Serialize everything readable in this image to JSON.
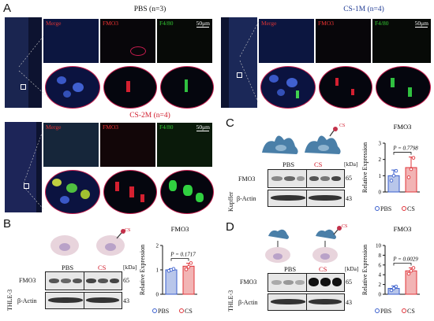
{
  "figure": {
    "panels": {
      "A": {
        "letter": "A",
        "groups": [
          {
            "title": "PBS (n=3)",
            "color": "#111111"
          },
          {
            "title": "CS-1M (n=4)",
            "color": "#1f3a93"
          },
          {
            "title": "CS-2M (n=4)",
            "color": "#d11a2a"
          }
        ],
        "channel_labels": {
          "merge": "Merge",
          "fmo3": "FMO3",
          "f480": "F4/80"
        },
        "scale_bar": "50μm"
      },
      "B": {
        "letter": "B",
        "cell_line": "THLE-3",
        "treatment_left": "PBS",
        "treatment_right": "CS",
        "marker_cs": "CS",
        "kda": "[kDa]",
        "bands": [
          {
            "name": "FMO3",
            "mw": "65"
          },
          {
            "name": "β-Actin",
            "mw": "43"
          }
        ]
      },
      "C": {
        "letter": "C",
        "cell_line": "Kupffer",
        "treatment_left": "PBS",
        "treatment_right": "CS",
        "marker_cs": "CS",
        "kda": "[kDa]",
        "bands": [
          {
            "name": "FMO3",
            "mw": "65"
          },
          {
            "name": "β-Actin",
            "mw": "43"
          }
        ]
      },
      "D": {
        "letter": "D",
        "cell_line": "THLE-3",
        "treatment_left": "PBS",
        "treatment_right": "CS",
        "marker_cs": "CS",
        "kda": "[kDa]",
        "bands": [
          {
            "name": "FMO3",
            "mw": "65"
          },
          {
            "name": "β-Actin",
            "mw": "43"
          }
        ]
      }
    }
  },
  "chart_data": [
    {
      "panel": "B",
      "type": "bar",
      "title": "FMO3",
      "ylabel": "Relative Expression",
      "categories": [
        "PBS",
        "CS"
      ],
      "values": [
        1.0,
        1.15
      ],
      "errors": [
        0.05,
        0.12
      ],
      "points": [
        [
          0.96,
          1.0,
          1.04
        ],
        [
          1.02,
          1.12,
          1.28
        ]
      ],
      "ylim": [
        0,
        2
      ],
      "yticks": [
        "0",
        "1",
        "2"
      ],
      "annotation": "P = 0.1717",
      "legend": [
        "PBS",
        "CS"
      ],
      "colors": [
        "#3a5fcd",
        "#e0343a"
      ]
    },
    {
      "panel": "C",
      "type": "bar",
      "title": "FMO3",
      "ylabel": "Relative Expression",
      "categories": [
        "PBS",
        "CS"
      ],
      "values": [
        1.0,
        1.5
      ],
      "errors": [
        0.35,
        0.65
      ],
      "points": [
        [
          0.7,
          1.0,
          1.3
        ],
        [
          0.9,
          1.4,
          2.1
        ]
      ],
      "ylim": [
        0,
        3
      ],
      "yticks": [
        "0",
        "1",
        "2",
        "3"
      ],
      "annotation": "P = 0.7798",
      "legend": [
        "PBS",
        "CS"
      ],
      "colors": [
        "#3a5fcd",
        "#e0343a"
      ]
    },
    {
      "panel": "D",
      "type": "bar",
      "title": "FMO3",
      "ylabel": "Relative Expression",
      "categories": [
        "PBS",
        "CS"
      ],
      "values": [
        1.2,
        4.8
      ],
      "errors": [
        0.5,
        0.6
      ],
      "points": [
        [
          0.8,
          1.2,
          1.6
        ],
        [
          4.2,
          4.8,
          5.4
        ]
      ],
      "ylim": [
        0,
        10
      ],
      "yticks": [
        "0",
        "2",
        "4",
        "6",
        "8",
        "10"
      ],
      "annotation": "P = 0.0029",
      "legend": [
        "PBS",
        "CS"
      ],
      "colors": [
        "#3a5fcd",
        "#e0343a"
      ]
    }
  ]
}
